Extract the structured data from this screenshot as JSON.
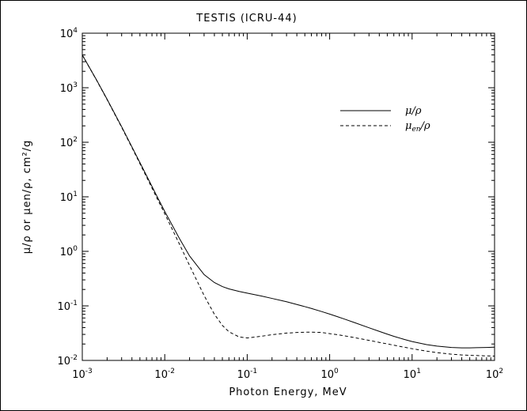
{
  "chart_data": {
    "type": "line",
    "title": "TESTIS (ICRU-44)",
    "xlabel": "Photon Energy, MeV",
    "ylabel": "μ/ρ or μen/ρ, cm²/g",
    "x_scale": "log",
    "y_scale": "log",
    "xlim": [
      0.001,
      100
    ],
    "ylim": [
      0.01,
      10000
    ],
    "grid": false,
    "legend_position": "top-right",
    "x_ticks": [
      {
        "value": 0.001,
        "base": "10",
        "exp": "-3"
      },
      {
        "value": 0.01,
        "base": "10",
        "exp": "-2"
      },
      {
        "value": 0.1,
        "base": "10",
        "exp": "-1"
      },
      {
        "value": 1,
        "base": "10",
        "exp": "0"
      },
      {
        "value": 10,
        "base": "10",
        "exp": "1"
      },
      {
        "value": 100,
        "base": "10",
        "exp": "2"
      }
    ],
    "y_ticks": [
      {
        "value": 0.01,
        "base": "10",
        "exp": "-2"
      },
      {
        "value": 0.1,
        "base": "10",
        "exp": "-1"
      },
      {
        "value": 1,
        "base": "10",
        "exp": "0"
      },
      {
        "value": 10,
        "base": "10",
        "exp": "1"
      },
      {
        "value": 100,
        "base": "10",
        "exp": "2"
      },
      {
        "value": 1000,
        "base": "10",
        "exp": "3"
      },
      {
        "value": 10000,
        "base": "10",
        "exp": "4"
      }
    ],
    "series": [
      {
        "name": "μ/ρ",
        "legend_main": "μ/ρ",
        "legend_sub": "",
        "legend_tail": "",
        "style": "solid",
        "color": "#000000",
        "x": [
          0.001,
          0.0015,
          0.002,
          0.003,
          0.004,
          0.005,
          0.006,
          0.008,
          0.01,
          0.015,
          0.02,
          0.03,
          0.04,
          0.05,
          0.06,
          0.08,
          0.1,
          0.15,
          0.2,
          0.3,
          0.4,
          0.5,
          0.6,
          0.8,
          1.0,
          1.25,
          1.5,
          2.0,
          3.0,
          4.0,
          5.0,
          6.0,
          8.0,
          10.0,
          15.0,
          20.0,
          30.0,
          40.0,
          50.0,
          60.0,
          80.0,
          100.0
        ],
        "y": [
          4000,
          1360,
          614,
          193,
          82.4,
          42.4,
          24.6,
          10.4,
          5.39,
          1.74,
          0.822,
          0.375,
          0.268,
          0.226,
          0.205,
          0.184,
          0.171,
          0.151,
          0.137,
          0.119,
          0.106,
          0.0969,
          0.0896,
          0.0787,
          0.0707,
          0.0632,
          0.0575,
          0.0494,
          0.0397,
          0.0341,
          0.0303,
          0.0277,
          0.0243,
          0.0222,
          0.0195,
          0.0183,
          0.0173,
          0.017,
          0.017,
          0.0171,
          0.0173,
          0.0175
        ]
      },
      {
        "name": "μen/ρ",
        "legend_main": "μ",
        "legend_sub": "en",
        "legend_tail": "/ρ",
        "style": "dashed",
        "color": "#000000",
        "x": [
          0.001,
          0.0015,
          0.002,
          0.003,
          0.004,
          0.005,
          0.006,
          0.008,
          0.01,
          0.015,
          0.02,
          0.03,
          0.04,
          0.05,
          0.06,
          0.08,
          0.1,
          0.15,
          0.2,
          0.3,
          0.4,
          0.5,
          0.6,
          0.8,
          1.0,
          1.25,
          1.5,
          2.0,
          3.0,
          4.0,
          5.0,
          6.0,
          8.0,
          10.0,
          15.0,
          20.0,
          30.0,
          40.0,
          50.0,
          60.0,
          80.0,
          100.0
        ],
        "y": [
          3980,
          1350,
          605,
          188,
          80.0,
          40.5,
          23.3,
          9.6,
          4.9,
          1.38,
          0.55,
          0.155,
          0.0704,
          0.0438,
          0.0335,
          0.0269,
          0.0258,
          0.0278,
          0.0296,
          0.0317,
          0.0325,
          0.0329,
          0.033,
          0.0326,
          0.031,
          0.0296,
          0.0283,
          0.0262,
          0.0233,
          0.0214,
          0.0201,
          0.019,
          0.0175,
          0.0164,
          0.0148,
          0.0139,
          0.013,
          0.0126,
          0.0124,
          0.0123,
          0.0121,
          0.012
        ]
      }
    ]
  }
}
